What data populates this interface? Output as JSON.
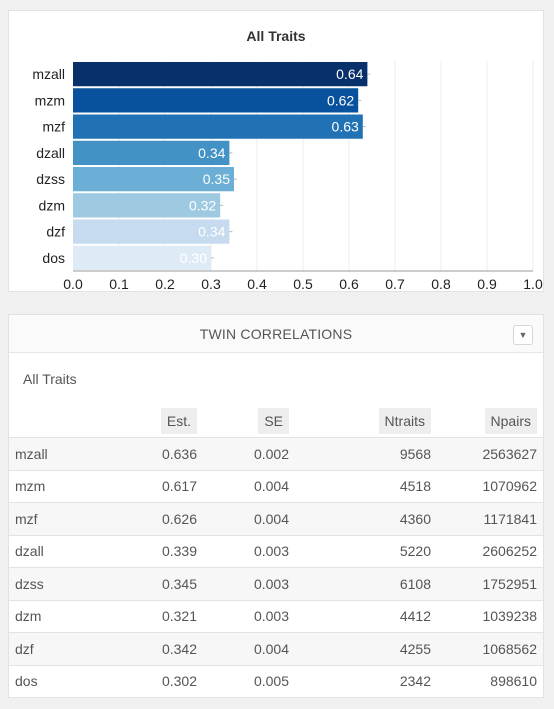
{
  "chart": {
    "title": "All Traits"
  },
  "chart_data": {
    "type": "bar",
    "orientation": "horizontal",
    "title": "All Traits",
    "categories": [
      "mzall",
      "mzm",
      "mzf",
      "dzall",
      "dzss",
      "dzm",
      "dzf",
      "dos"
    ],
    "values": [
      0.64,
      0.62,
      0.63,
      0.34,
      0.35,
      0.32,
      0.34,
      0.3
    ],
    "data_labels": [
      "0.64",
      "0.62",
      "0.63",
      "0.34",
      "0.35",
      "0.32",
      "0.34",
      "0.30"
    ],
    "xlim": [
      0,
      1
    ],
    "xticks": [
      "0.0",
      "0.1",
      "0.2",
      "0.3",
      "0.4",
      "0.5",
      "0.6",
      "0.7",
      "0.8",
      "0.9",
      "1.0"
    ],
    "grid": true,
    "colors": [
      "#08306b",
      "#08519c",
      "#2171b5",
      "#4292c6",
      "#6baed6",
      "#9ecae1",
      "#c6dbef",
      "#deebf7"
    ]
  },
  "panel": {
    "title": "TWIN CORRELATIONS",
    "dropdown_icon": "chevron-down-icon",
    "subtitle": "All Traits"
  },
  "table": {
    "headers": [
      "",
      "Est.",
      "SE",
      "Ntraits",
      "Npairs"
    ],
    "rows": [
      [
        "mzall",
        "0.636",
        "0.002",
        "9568",
        "2563627"
      ],
      [
        "mzm",
        "0.617",
        "0.004",
        "4518",
        "1070962"
      ],
      [
        "mzf",
        "0.626",
        "0.004",
        "4360",
        "1171841"
      ],
      [
        "dzall",
        "0.339",
        "0.003",
        "5220",
        "2606252"
      ],
      [
        "dzss",
        "0.345",
        "0.003",
        "6108",
        "1752951"
      ],
      [
        "dzm",
        "0.321",
        "0.003",
        "4412",
        "1039238"
      ],
      [
        "dzf",
        "0.342",
        "0.004",
        "4255",
        "1068562"
      ],
      [
        "dos",
        "0.302",
        "0.005",
        "2342",
        "898610"
      ]
    ]
  }
}
